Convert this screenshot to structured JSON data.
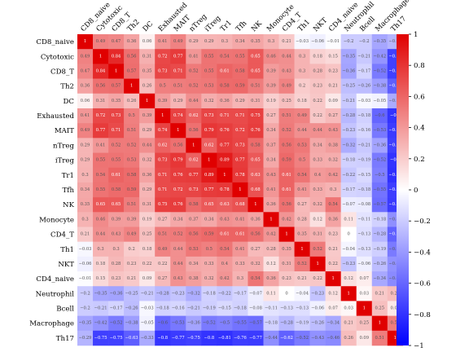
{
  "chart_data": {
    "type": "heatmap",
    "title": "",
    "labels": [
      "CD8_naive",
      "Cytotoxic",
      "CD8_T",
      "Th2",
      "DC",
      "Exhausted",
      "MAIT",
      "nTreg",
      "iTreg",
      "Tr1",
      "Tfh",
      "NK",
      "Monocyte",
      "CD4_T",
      "Th1",
      "NKT",
      "CD4_naive",
      "Neutrophil",
      "Bcell",
      "Macrophage",
      "Th17"
    ],
    "matrix": [
      [
        1,
        0.49,
        0.47,
        0.36,
        0.06,
        0.41,
        0.49,
        0.29,
        0.29,
        0.3,
        0.34,
        0.35,
        0.3,
        0.21,
        -0.03,
        -0.06,
        -0.01,
        -0.2,
        -0.2,
        -0.35,
        -0.29
      ],
      [
        0.49,
        1,
        0.84,
        0.56,
        0.31,
        0.72,
        0.77,
        0.41,
        0.55,
        0.54,
        0.55,
        0.65,
        0.46,
        0.44,
        0.3,
        0.18,
        0.15,
        -0.35,
        -0.21,
        -0.42,
        -0.75
      ],
      [
        0.47,
        0.84,
        1,
        0.57,
        0.35,
        0.73,
        0.71,
        0.52,
        0.55,
        0.61,
        0.58,
        0.65,
        0.39,
        0.43,
        0.3,
        0.28,
        0.23,
        -0.36,
        -0.17,
        -0.52,
        -0.75
      ],
      [
        0.36,
        0.56,
        0.57,
        1,
        0.26,
        0.5,
        0.51,
        0.52,
        0.53,
        0.58,
        0.59,
        0.51,
        0.39,
        0.49,
        0.2,
        0.23,
        0.21,
        -0.25,
        -0.26,
        -0.38,
        -0.63
      ],
      [
        0.06,
        0.31,
        0.35,
        0.26,
        1,
        0.39,
        0.29,
        0.44,
        0.32,
        0.36,
        0.29,
        0.31,
        0.19,
        0.25,
        0.18,
        0.22,
        0.09,
        -0.21,
        -0.03,
        -0.05,
        -0.33
      ],
      [
        0.41,
        0.72,
        0.73,
        0.5,
        0.39,
        1,
        0.74,
        0.62,
        0.73,
        0.71,
        0.71,
        0.75,
        0.27,
        0.51,
        0.49,
        0.22,
        0.27,
        -0.28,
        -0.18,
        -0.6,
        -0.8
      ],
      [
        0.49,
        0.77,
        0.71,
        0.51,
        0.29,
        0.74,
        1,
        0.56,
        0.79,
        0.76,
        0.72,
        0.76,
        0.34,
        0.52,
        0.44,
        0.44,
        0.43,
        -0.23,
        -0.16,
        -0.53,
        -0.77
      ],
      [
        0.29,
        0.41,
        0.52,
        0.52,
        0.44,
        0.62,
        0.56,
        1,
        0.62,
        0.77,
        0.73,
        0.58,
        0.37,
        0.56,
        0.53,
        0.34,
        0.38,
        -0.32,
        -0.21,
        -0.36,
        -0.75
      ],
      [
        0.29,
        0.55,
        0.55,
        0.53,
        0.32,
        0.73,
        0.79,
        0.62,
        1,
        0.89,
        0.77,
        0.65,
        0.34,
        0.59,
        0.5,
        0.33,
        0.32,
        -0.18,
        -0.19,
        -0.52,
        -0.8
      ],
      [
        0.3,
        0.54,
        0.61,
        0.58,
        0.36,
        0.71,
        0.76,
        0.77,
        0.89,
        1,
        0.78,
        0.63,
        0.43,
        0.61,
        0.54,
        0.4,
        0.42,
        -0.22,
        -0.15,
        -0.5,
        -0.81
      ],
      [
        0.34,
        0.55,
        0.58,
        0.59,
        0.29,
        0.71,
        0.72,
        0.73,
        0.77,
        0.78,
        1,
        0.68,
        0.41,
        0.61,
        0.41,
        0.33,
        0.3,
        -0.17,
        -0.18,
        -0.55,
        -0.76
      ],
      [
        0.35,
        0.65,
        0.65,
        0.51,
        0.31,
        0.75,
        0.76,
        0.58,
        0.65,
        0.63,
        0.68,
        1,
        0.36,
        0.56,
        0.27,
        0.32,
        0.54,
        -0.07,
        -0.08,
        -0.57,
        -0.77
      ],
      [
        0.3,
        0.46,
        0.39,
        0.39,
        0.19,
        0.27,
        0.34,
        0.37,
        0.34,
        0.43,
        0.41,
        0.36,
        1,
        0.42,
        0.28,
        0.12,
        0.36,
        0.11,
        -0.11,
        -0.18,
        -0.44
      ],
      [
        0.21,
        0.44,
        0.43,
        0.49,
        0.25,
        0.51,
        0.52,
        0.56,
        0.59,
        0.61,
        0.61,
        0.56,
        0.42,
        1,
        0.35,
        0.31,
        0.23,
        0,
        -0.13,
        -0.28,
        -0.62
      ],
      [
        -0.03,
        0.3,
        0.3,
        0.2,
        0.18,
        0.49,
        0.44,
        0.53,
        0.5,
        0.54,
        0.41,
        0.27,
        0.28,
        0.35,
        1,
        0.52,
        0.21,
        -0.04,
        -0.13,
        -0.19,
        -0.52
      ],
      [
        -0.06,
        0.18,
        0.28,
        0.23,
        0.22,
        0.22,
        0.44,
        0.34,
        0.33,
        0.4,
        0.33,
        0.32,
        0.12,
        0.31,
        0.52,
        1,
        0.22,
        -0.23,
        -0.06,
        -0.26,
        -0.43
      ],
      [
        -0.01,
        0.15,
        0.23,
        0.21,
        0.09,
        0.27,
        0.43,
        0.38,
        0.32,
        0.42,
        0.3,
        0.54,
        0.36,
        0.23,
        0.21,
        0.22,
        1,
        0.12,
        0.07,
        -0.34,
        -0.46
      ],
      [
        -0.2,
        -0.35,
        -0.36,
        -0.25,
        -0.21,
        -0.28,
        -0.23,
        -0.32,
        -0.18,
        -0.22,
        -0.17,
        -0.07,
        0.11,
        0,
        -0.04,
        -0.23,
        0.12,
        1,
        0.03,
        0.21,
        0.26
      ],
      [
        -0.2,
        -0.21,
        -0.17,
        -0.26,
        -0.03,
        -0.18,
        -0.16,
        -0.21,
        -0.19,
        -0.15,
        -0.18,
        -0.08,
        -0.11,
        -0.13,
        -0.13,
        -0.06,
        0.07,
        0.03,
        1,
        0.25,
        0.09
      ],
      [
        -0.35,
        -0.42,
        -0.52,
        -0.38,
        -0.05,
        -0.6,
        -0.53,
        -0.36,
        -0.52,
        -0.5,
        -0.55,
        -0.57,
        -0.18,
        -0.28,
        -0.19,
        -0.26,
        -0.34,
        0.21,
        0.25,
        1,
        0.51
      ],
      [
        -0.29,
        -0.75,
        -0.75,
        -0.63,
        -0.33,
        -0.8,
        -0.77,
        -0.75,
        -0.8,
        -0.81,
        -0.76,
        -0.77,
        -0.44,
        -0.62,
        -0.52,
        -0.43,
        -0.46,
        0.26,
        0.09,
        0.51,
        1
      ]
    ],
    "vmin": -1,
    "vmax": 1,
    "colormap": {
      "low": "#0000ff",
      "mid": "#ffffff",
      "high": "#e00000"
    },
    "colorbar_ticks": [
      1,
      0.8,
      0.6,
      0.4,
      0.2,
      0,
      -0.2,
      -0.4,
      -0.6,
      -0.8,
      -1
    ],
    "grid": false,
    "legend": "right"
  }
}
